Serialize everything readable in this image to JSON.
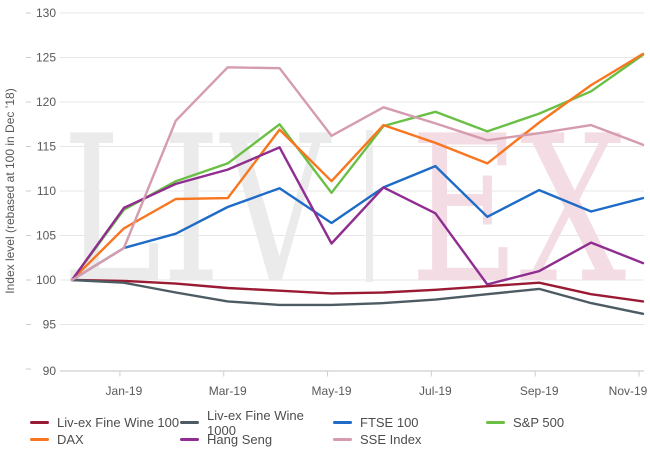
{
  "watermark": {
    "text_left": "LIV",
    "separator": "|",
    "text_right": "EX",
    "left_color": "#ebebeb",
    "separator_color": "#ececec",
    "right_color": "#f3dce3"
  },
  "chart_data": {
    "type": "line",
    "title": "",
    "ylabel": "Index level (rebased at 100 in Dec ’18)",
    "xlabel": "",
    "ylim": [
      90,
      130
    ],
    "ytick_step": 5,
    "grid": "horizontal",
    "legend_position": "bottom",
    "x_categories": [
      "Dec-18",
      "Jan-19",
      "Feb-19",
      "Mar-19",
      "Apr-19",
      "May-19",
      "Jun-19",
      "Jul-19",
      "Aug-19",
      "Sep-19",
      "Oct-19",
      "Nov-19"
    ],
    "x_ticks": [
      {
        "label": "Jan-19",
        "month_index": 1
      },
      {
        "label": "Mar-19",
        "month_index": 3
      },
      {
        "label": "May-19",
        "month_index": 5
      },
      {
        "label": "Jul-19",
        "month_index": 7
      },
      {
        "label": "Sep-19",
        "month_index": 9
      },
      {
        "label": "Nov-19",
        "month_index": 11
      }
    ],
    "series": [
      {
        "name": "Liv-ex Fine Wine 100",
        "color": "#9a1a33",
        "values": [
          100,
          99.9,
          99.6,
          99.1,
          98.8,
          98.5,
          98.6,
          98.9,
          99.3,
          99.7,
          98.4,
          97.6
        ]
      },
      {
        "name": "Liv-ex Fine Wine 1000",
        "color": "#4d5c63",
        "values": [
          100,
          99.7,
          98.6,
          97.6,
          97.2,
          97.2,
          97.4,
          97.8,
          98.4,
          99.0,
          97.4,
          96.2
        ]
      },
      {
        "name": "FTSE 100",
        "color": "#1e6cc7",
        "values": [
          100,
          103.6,
          105.2,
          108.2,
          110.3,
          106.4,
          110.4,
          112.8,
          107.1,
          110.1,
          107.7,
          109.2
        ]
      },
      {
        "name": "S&P 500",
        "color": "#6abf45",
        "values": [
          100,
          107.9,
          111.1,
          113.1,
          117.5,
          109.8,
          117.3,
          118.9,
          116.7,
          118.7,
          121.2,
          125.3
        ]
      },
      {
        "name": "DAX",
        "color": "#f8761f",
        "values": [
          100,
          105.8,
          109.1,
          109.2,
          116.9,
          111.1,
          117.4,
          115.4,
          113.1,
          117.7,
          121.9,
          125.4
        ]
      },
      {
        "name": "Hang Seng",
        "color": "#8f2d90",
        "values": [
          100,
          108.1,
          110.8,
          112.4,
          114.9,
          104.1,
          110.4,
          107.5,
          99.5,
          101.0,
          104.2,
          101.9
        ]
      },
      {
        "name": "SSE Index",
        "color": "#d59cae",
        "values": [
          100,
          103.6,
          117.9,
          123.9,
          123.8,
          116.2,
          119.4,
          117.6,
          115.7,
          116.5,
          117.4,
          115.2
        ]
      }
    ],
    "colors": {
      "gridline": "#e7e7e7",
      "axis_line": "#cfcfcf",
      "tick_mark": "#cfcfcf",
      "tick_label": "#595959",
      "legend_text": "#4d4d4d"
    }
  }
}
